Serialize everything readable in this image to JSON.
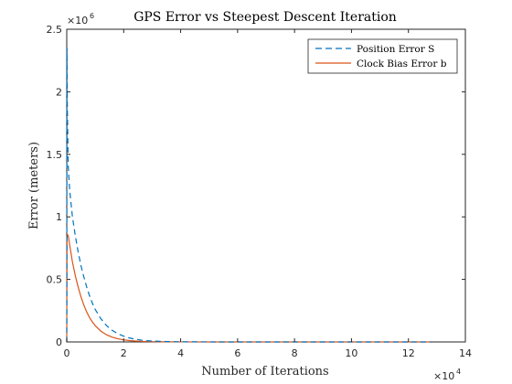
{
  "chart_data": {
    "type": "line",
    "title": "GPS Error vs Steepest Descent Iteration",
    "xlabel": "Number of Iterations",
    "ylabel": "Error (meters)",
    "xlim": [
      0,
      140000
    ],
    "ylim": [
      0,
      2500000
    ],
    "x_ticks": [
      0,
      20000,
      40000,
      60000,
      80000,
      100000,
      120000,
      140000
    ],
    "x_tick_labels": [
      "0",
      "2",
      "4",
      "6",
      "8",
      "10",
      "12",
      "14"
    ],
    "y_ticks": [
      0,
      500000,
      1000000,
      1500000,
      2000000,
      2500000
    ],
    "y_tick_labels": [
      "0",
      "0.5",
      "1",
      "1.5",
      "2",
      "2.5"
    ],
    "x_exponent_base": "×10",
    "x_exponent_power": "4",
    "y_exponent_base": "×10",
    "y_exponent_power": "6",
    "grid": false,
    "legend_position": "top-right",
    "series": [
      {
        "name": "Position Error S",
        "color": "#0072BD",
        "dash": "dashed",
        "x": [
          0,
          100,
          200,
          500,
          1000,
          2000,
          3000,
          4000,
          5000,
          6000,
          7000,
          8000,
          9000,
          10000,
          12000,
          14000,
          16000,
          18000,
          20000,
          22000,
          24000,
          26000,
          28000,
          30000,
          35000,
          40000,
          50000,
          60000,
          80000,
          100000,
          120000,
          128000
        ],
        "y": [
          0,
          2350000,
          1900000,
          1420000,
          1220000,
          1000000,
          850000,
          720000,
          610000,
          520000,
          440000,
          370000,
          310000,
          260000,
          185000,
          130000,
          92000,
          65000,
          46000,
          32000,
          22000,
          15000,
          10000,
          7000,
          3000,
          1200,
          300,
          100,
          20,
          5,
          2,
          1
        ]
      },
      {
        "name": "Clock Bias Error b",
        "color": "#D95319",
        "dash": "solid",
        "x": [
          0,
          100,
          300,
          600,
          1000,
          2000,
          3000,
          4000,
          5000,
          6000,
          7000,
          8000,
          9000,
          10000,
          12000,
          14000,
          16000,
          18000,
          20000,
          22000,
          24000,
          26000,
          28000,
          30000,
          35000,
          40000,
          50000,
          60000,
          80000,
          100000,
          120000,
          128000
        ],
        "y": [
          0,
          830000,
          860000,
          840000,
          780000,
          640000,
          530000,
          440000,
          360000,
          295000,
          240000,
          195000,
          160000,
          130000,
          86000,
          57000,
          38000,
          25000,
          17000,
          11000,
          7500,
          5000,
          3300,
          2200,
          800,
          300,
          50,
          10,
          2,
          1,
          0,
          0
        ]
      }
    ]
  }
}
